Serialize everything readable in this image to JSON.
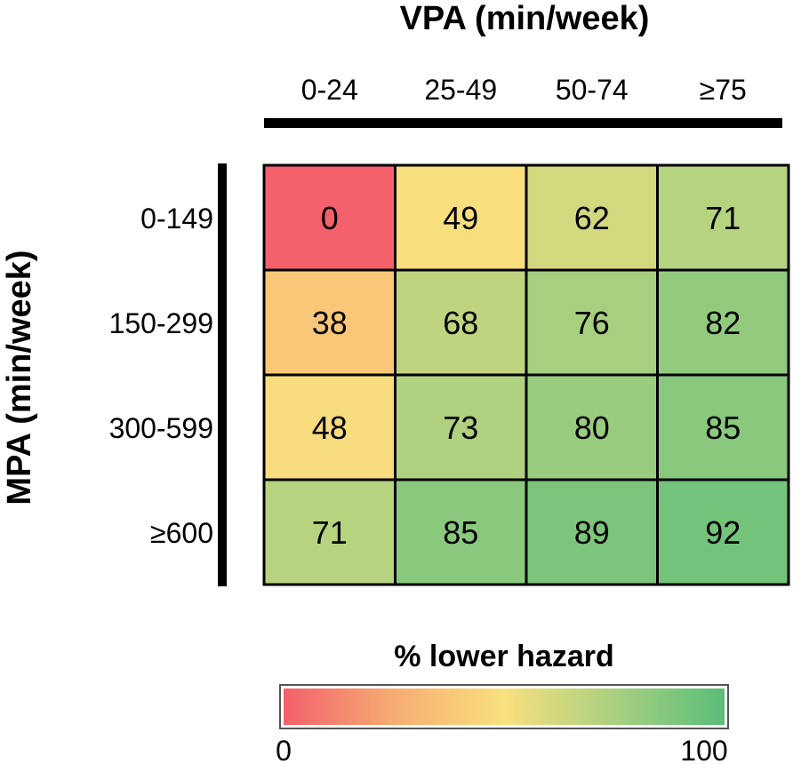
{
  "chart_data": {
    "type": "heatmap",
    "title": "",
    "xlabel": "VPA (min/week)",
    "ylabel": "MPA (min/week)",
    "x_categories": [
      "0-24",
      "25-49",
      "50-74",
      "≥75"
    ],
    "y_categories": [
      "0-149",
      "150-299",
      "300-599",
      "≥600"
    ],
    "values": [
      [
        0,
        49,
        62,
        71
      ],
      [
        38,
        68,
        76,
        82
      ],
      [
        48,
        73,
        80,
        85
      ],
      [
        71,
        85,
        89,
        92
      ]
    ],
    "colorbar": {
      "label": "% lower hazard",
      "min": 0,
      "max": 100,
      "min_label": "0",
      "max_label": "100",
      "colors": [
        "#f4606c",
        "#f6ad72",
        "#f9e07e",
        "#a9d080",
        "#5abd79"
      ]
    },
    "grid": true
  }
}
